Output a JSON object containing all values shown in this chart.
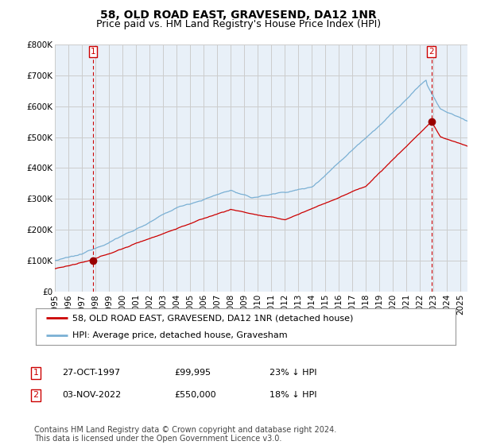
{
  "title": "58, OLD ROAD EAST, GRAVESEND, DA12 1NR",
  "subtitle": "Price paid vs. HM Land Registry's House Price Index (HPI)",
  "ylim": [
    0,
    800000
  ],
  "yticks": [
    0,
    100000,
    200000,
    300000,
    400000,
    500000,
    600000,
    700000,
    800000
  ],
  "ytick_labels": [
    "£0",
    "£100K",
    "£200K",
    "£300K",
    "£400K",
    "£500K",
    "£600K",
    "£700K",
    "£800K"
  ],
  "sale1_date": 1997.82,
  "sale1_price": 99995,
  "sale1_label": "1",
  "sale2_date": 2022.84,
  "sale2_price": 550000,
  "sale2_label": "2",
  "line_color_property": "#cc0000",
  "line_color_hpi": "#7ab0d4",
  "marker_color": "#990000",
  "vline_color": "#cc0000",
  "grid_color": "#cccccc",
  "plot_bg_color": "#e8f0f8",
  "background_color": "#ffffff",
  "legend_label1": "58, OLD ROAD EAST, GRAVESEND, DA12 1NR (detached house)",
  "legend_label2": "HPI: Average price, detached house, Gravesham",
  "table_row1": [
    "1",
    "27-OCT-1997",
    "£99,995",
    "23% ↓ HPI"
  ],
  "table_row2": [
    "2",
    "03-NOV-2022",
    "£550,000",
    "18% ↓ HPI"
  ],
  "footnote": "Contains HM Land Registry data © Crown copyright and database right 2024.\nThis data is licensed under the Open Government Licence v3.0.",
  "title_fontsize": 10,
  "subtitle_fontsize": 9,
  "tick_fontsize": 7.5,
  "legend_fontsize": 8,
  "table_fontsize": 8,
  "footnote_fontsize": 7
}
